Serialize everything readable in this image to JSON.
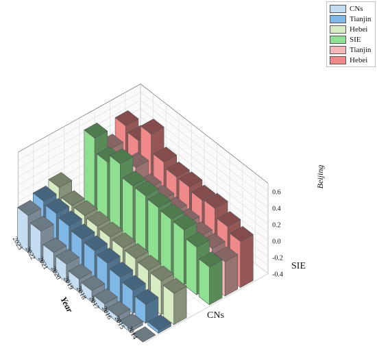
{
  "chart_data": {
    "type": "bar",
    "title": "",
    "xlabel": "Year",
    "ylabel": "Beijing",
    "zlabels": [
      "CNs",
      "SIE"
    ],
    "years": [
      "2023",
      "2022",
      "2021",
      "2020",
      "2019",
      "2018",
      "2017",
      "2016",
      "2015",
      "2014"
    ],
    "zlim": [
      -0.4,
      0.6
    ],
    "zticks": [
      "0.6",
      "0.4",
      "0.2",
      "0.0",
      "-0.2",
      "-0.4"
    ],
    "grid": true,
    "legend_position": "top-right",
    "series": [
      {
        "name": "CNs",
        "group": "CNs",
        "color": "#c5ddf0",
        "values": [
          0.05,
          -0.02,
          -0.16,
          -0.18,
          -0.24,
          -0.26,
          -0.3,
          -0.33,
          -0.36,
          -0.4
        ]
      },
      {
        "name": "Tianjin",
        "group": "CNs",
        "color": "#7fb8e6",
        "values": [
          0.12,
          0.09,
          0.06,
          0.02,
          0.0,
          -0.03,
          -0.08,
          -0.12,
          -0.17,
          -0.36
        ]
      },
      {
        "name": "Hebei",
        "group": "CNs",
        "color": "#d8ecc3",
        "values": [
          0.18,
          0.08,
          0.08,
          0.07,
          0.06,
          0.05,
          0.04,
          0.02,
          0.01,
          -0.02
        ]
      },
      {
        "name": "SIE",
        "group": "SIE",
        "color": "#8fe090",
        "values": [
          0.54,
          0.37,
          0.47,
          0.32,
          0.32,
          0.3,
          0.28,
          0.27,
          0.18,
          0.06
        ]
      },
      {
        "name": "Tianjin",
        "group": "SIE",
        "color": "#f5b7b7",
        "values": [
          0.3,
          0.16,
          0.32,
          0.18,
          0.16,
          0.14,
          0.12,
          0.08,
          0.06,
          0.02
        ]
      },
      {
        "name": "Hebei",
        "group": "SIE",
        "color": "#f08a8a",
        "values": [
          0.48,
          0.42,
          0.62,
          0.4,
          0.34,
          0.34,
          0.3,
          0.32,
          0.22,
          0.16
        ]
      }
    ]
  }
}
